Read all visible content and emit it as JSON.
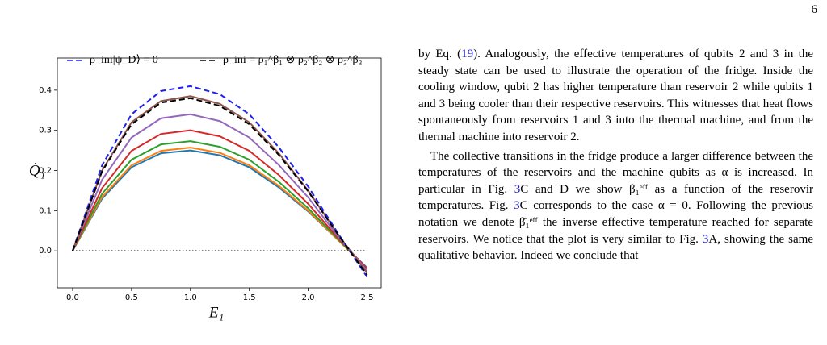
{
  "page_number": "6",
  "chart_data": {
    "type": "line",
    "xlabel": "E₁",
    "ylabel": "Q̇₁",
    "x": [
      0,
      0.25,
      0.5,
      0.75,
      1.0,
      1.25,
      1.5,
      1.75,
      2.0,
      2.25,
      2.5
    ],
    "xlim": [
      -0.13,
      2.62
    ],
    "ylim": [
      -0.092,
      0.48
    ],
    "xticks": [
      0.0,
      0.5,
      1.0,
      1.5,
      2.0,
      2.5
    ],
    "yticks": [
      0.0,
      0.1,
      0.2,
      0.3,
      0.4
    ],
    "series": [
      {
        "color": "#1f77b4",
        "style": "solid",
        "values": [
          0,
          0.13,
          0.208,
          0.243,
          0.25,
          0.238,
          0.208,
          0.158,
          0.098,
          0.028,
          -0.042
        ]
      },
      {
        "color": "#ff7f0e",
        "style": "solid",
        "values": [
          0,
          0.134,
          0.213,
          0.249,
          0.257,
          0.244,
          0.213,
          0.162,
          0.1,
          0.028,
          -0.045
        ]
      },
      {
        "color": "#2ca02c",
        "style": "solid",
        "values": [
          0,
          0.142,
          0.227,
          0.265,
          0.273,
          0.259,
          0.227,
          0.172,
          0.106,
          0.03,
          -0.045
        ]
      },
      {
        "color": "#d62728",
        "style": "solid",
        "values": [
          0,
          0.156,
          0.249,
          0.291,
          0.3,
          0.285,
          0.249,
          0.189,
          0.117,
          0.033,
          -0.045
        ]
      },
      {
        "color": "#9467bd",
        "style": "solid",
        "values": [
          0,
          0.177,
          0.282,
          0.33,
          0.34,
          0.323,
          0.282,
          0.214,
          0.133,
          0.037,
          -0.05
        ]
      },
      {
        "color": "#8c564b",
        "style": "solid",
        "values": [
          0,
          0.2,
          0.32,
          0.373,
          0.385,
          0.366,
          0.32,
          0.243,
          0.15,
          0.042,
          -0.055
        ]
      },
      {
        "name": "ρ_ini|ψ_D⟩ = 0",
        "color": "#1f1fee",
        "style": "dashed",
        "values": [
          0,
          0.213,
          0.34,
          0.398,
          0.41,
          0.39,
          0.34,
          0.258,
          0.16,
          0.045,
          -0.065
        ]
      },
      {
        "name": "ρ_ini = ρ₁^β₁ ⊗ ρ₂^β₂ ⊗ ρ₃^β₃",
        "color": "#000000",
        "style": "dashed",
        "values": [
          0,
          0.198,
          0.315,
          0.369,
          0.38,
          0.361,
          0.315,
          0.239,
          0.148,
          0.042,
          -0.06
        ]
      },
      {
        "color": "#000000",
        "style": "dotted",
        "values": [
          0,
          0,
          0,
          0,
          0,
          0,
          0,
          0,
          0,
          0,
          0
        ]
      }
    ]
  },
  "paragraphs": [
    [
      {
        "text": "by Eq. ("
      },
      {
        "text": "19",
        "ref": true
      },
      {
        "text": "). Analogously, the effective temperatures of qubits 2 and 3 in the steady state can be used to illustrate the operation of the fridge. Inside the cooling window, qubit 2 has higher temperature than reservoir 2 while qubits 1 and 3 being cooler than their respective reservoirs. This witnesses that heat flows spontaneously from reservoirs 1 and 3 into the thermal machine, and from the thermal machine into reservoir 2."
      }
    ],
    [
      {
        "text": "The collective transitions in the fridge produce a larger difference between the temperatures of the reservoirs and the machine qubits as α is increased. In particular in Fig. "
      },
      {
        "text": "3",
        "ref": true
      },
      {
        "text": "C and D we show β₁ᵉᶠᶠ as a function of the reserovir temperatures. Fig. "
      },
      {
        "text": "3",
        "ref": true
      },
      {
        "text": "C corresponds to the case α = 0. Following the previous notation we denote β̄₁ᵉᶠᶠ the inverse effective temperature reached for separate reservoirs. We notice that the plot is very similar to Fig. "
      },
      {
        "text": "3",
        "ref": true
      },
      {
        "text": "A, showing the same qualitative behavior. Indeed we conclude that"
      }
    ]
  ]
}
